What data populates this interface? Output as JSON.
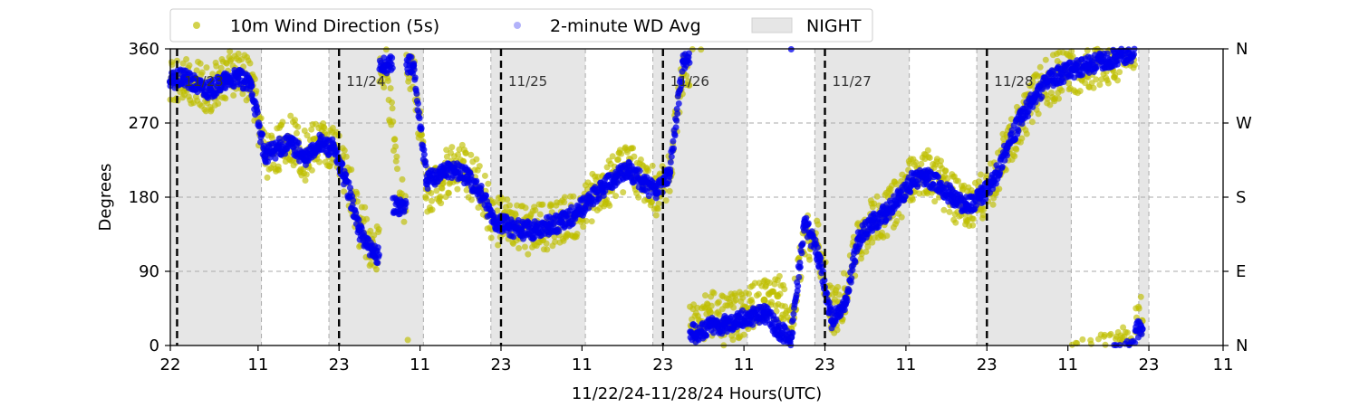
{
  "chart_data": {
    "type": "scatter",
    "xlabel": "11/22/24-11/28/24  Hours(UTC)",
    "ylabel": "Degrees",
    "xlim": [
      0,
      156
    ],
    "ylim": [
      0,
      360
    ],
    "x_unit": "hours since 11/22 22:00 UTC",
    "x_ticks": [
      {
        "x": 0,
        "label": "22"
      },
      {
        "x": 13,
        "label": "11"
      },
      {
        "x": 25,
        "label": "23"
      },
      {
        "x": 37,
        "label": "11"
      },
      {
        "x": 49,
        "label": "23"
      },
      {
        "x": 61,
        "label": "11"
      },
      {
        "x": 73,
        "label": "23"
      },
      {
        "x": 85,
        "label": "11"
      },
      {
        "x": 97,
        "label": "23"
      },
      {
        "x": 109,
        "label": "11"
      },
      {
        "x": 121,
        "label": "23"
      },
      {
        "x": 133,
        "label": "11"
      },
      {
        "x": 145,
        "label": "23"
      },
      {
        "x": 157,
        "label": "11"
      }
    ],
    "y_ticks": [
      0,
      90,
      180,
      270,
      360
    ],
    "y2_ticks": [
      {
        "y": 0,
        "label": "N"
      },
      {
        "y": 90,
        "label": "E"
      },
      {
        "y": 180,
        "label": "S"
      },
      {
        "y": 270,
        "label": "W"
      },
      {
        "y": 360,
        "label": "N"
      }
    ],
    "grid": "dashed at y=90,180,270 and vertical at night edges",
    "legend": {
      "placement": "top-left above plot",
      "entries": [
        "10m Wind Direction (5s)",
        "2-minute WD Avg",
        "NIGHT"
      ]
    },
    "day_markers": [
      {
        "x": 1,
        "label": "11/23"
      },
      {
        "x": 25,
        "label": "11/24"
      },
      {
        "x": 49,
        "label": "11/25"
      },
      {
        "x": 73,
        "label": "11/26"
      },
      {
        "x": 97,
        "label": "11/27"
      },
      {
        "x": 121,
        "label": "11/28"
      }
    ],
    "night_periods": [
      [
        0,
        13.5
      ],
      [
        23.5,
        37.5
      ],
      [
        47.5,
        61.5
      ],
      [
        71.5,
        85.5
      ],
      [
        95.5,
        109.5
      ],
      [
        119.5,
        133.5
      ],
      [
        143.5,
        145
      ]
    ],
    "series": [
      {
        "name": "10m Wind Direction (5s)",
        "color": "#bfbf00",
        "x": [
          0,
          2,
          4,
          6,
          8,
          10,
          12,
          14,
          16,
          18,
          20,
          22,
          24,
          26,
          28,
          30,
          32,
          34,
          36,
          38,
          40,
          42,
          44,
          46,
          48,
          50,
          52,
          54,
          56,
          58,
          60,
          62,
          64,
          66,
          68,
          70,
          72,
          74,
          76,
          78,
          80,
          82,
          84,
          86,
          88,
          90,
          92,
          94,
          96,
          98,
          100,
          102,
          104,
          106,
          108,
          110,
          112,
          114,
          116,
          118,
          120,
          122,
          124,
          126,
          128,
          130,
          132,
          134,
          136,
          138,
          140,
          142,
          144
        ],
        "y": [
          320,
          330,
          315,
          310,
          325,
          330,
          320,
          230,
          240,
          250,
          230,
          250,
          240,
          210,
          150,
          120,
          330,
          180,
          340,
          190,
          200,
          220,
          210,
          190,
          150,
          150,
          140,
          140,
          145,
          150,
          160,
          175,
          190,
          205,
          215,
          200,
          185,
          210,
          330,
          20,
          40,
          30,
          35,
          45,
          55,
          60,
          20,
          140,
          120,
          40,
          60,
          130,
          150,
          160,
          180,
          200,
          210,
          200,
          180,
          165,
          180,
          200,
          240,
          270,
          300,
          320,
          330,
          335,
          340,
          345,
          350,
          355,
          30
        ]
      },
      {
        "name": "2-minute WD Avg",
        "color": "#0000ee",
        "x": [
          0,
          2,
          4,
          6,
          8,
          10,
          12,
          14,
          16,
          18,
          20,
          22,
          24,
          26,
          28,
          30,
          32,
          34,
          36,
          38,
          40,
          42,
          44,
          46,
          48,
          50,
          52,
          54,
          56,
          58,
          60,
          62,
          64,
          66,
          68,
          70,
          72,
          74,
          76,
          78,
          80,
          82,
          84,
          86,
          88,
          90,
          92,
          94,
          96,
          98,
          100,
          102,
          104,
          106,
          108,
          110,
          112,
          114,
          116,
          118,
          120,
          122,
          124,
          126,
          128,
          130,
          132,
          134,
          136,
          138,
          140,
          142,
          144
        ],
        "y": [
          320,
          325,
          315,
          310,
          320,
          325,
          315,
          230,
          240,
          245,
          225,
          245,
          240,
          200,
          140,
          110,
          340,
          170,
          340,
          200,
          210,
          215,
          205,
          185,
          150,
          145,
          140,
          140,
          145,
          150,
          160,
          175,
          190,
          205,
          212,
          198,
          185,
          210,
          345,
          15,
          25,
          25,
          30,
          35,
          40,
          20,
          10,
          150,
          110,
          30,
          50,
          130,
          150,
          160,
          180,
          200,
          205,
          195,
          180,
          170,
          180,
          200,
          240,
          275,
          300,
          320,
          330,
          335,
          340,
          345,
          350,
          355,
          20
        ]
      }
    ]
  }
}
